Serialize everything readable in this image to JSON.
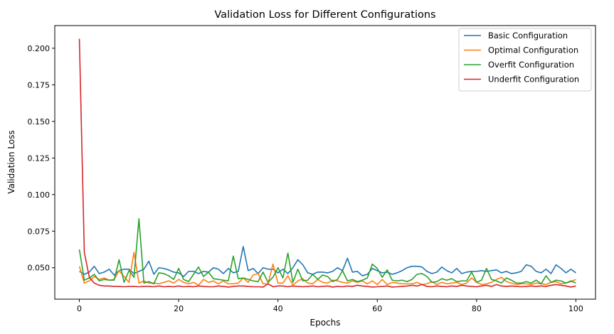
{
  "chart_data": {
    "type": "line",
    "title": "Validation Loss for Different Configurations",
    "xlabel": "Epochs",
    "ylabel": "Validation Loss",
    "xlim": [
      -4.95,
      103.95
    ],
    "ylim": [
      0.0285,
      0.2155
    ],
    "xticks": [
      0,
      20,
      40,
      60,
      80,
      100
    ],
    "xtick_labels": [
      "0",
      "20",
      "40",
      "60",
      "80",
      "100"
    ],
    "yticks": [
      0.05,
      0.075,
      0.1,
      0.125,
      0.15,
      0.175,
      0.2
    ],
    "ytick_labels": [
      "0.050",
      "0.075",
      "0.100",
      "0.125",
      "0.150",
      "0.175",
      "0.200"
    ],
    "grid": false,
    "legend_position": "top-right",
    "series": [
      {
        "name": "Basic Configuration",
        "color": "#1f77b4",
        "values": [
          0.0475,
          0.0455,
          0.047,
          0.051,
          0.046,
          0.047,
          0.049,
          0.045,
          0.048,
          0.049,
          0.049,
          0.046,
          0.0475,
          0.049,
          0.0545,
          0.0455,
          0.05,
          0.0495,
          0.0485,
          0.047,
          0.0465,
          0.044,
          0.0475,
          0.0475,
          0.046,
          0.0475,
          0.047,
          0.05,
          0.049,
          0.046,
          0.0495,
          0.0465,
          0.0475,
          0.0645,
          0.048,
          0.0495,
          0.046,
          0.05,
          0.049,
          0.049,
          0.0465,
          0.049,
          0.046,
          0.05,
          0.0555,
          0.052,
          0.0465,
          0.0455,
          0.047,
          0.047,
          0.0465,
          0.0475,
          0.05,
          0.048,
          0.0565,
          0.047,
          0.0475,
          0.0445,
          0.0455,
          0.0495,
          0.048,
          0.0465,
          0.047,
          0.0455,
          0.0465,
          0.048,
          0.05,
          0.051,
          0.051,
          0.0505,
          0.0475,
          0.046,
          0.047,
          0.0505,
          0.048,
          0.0465,
          0.0495,
          0.046,
          0.047,
          0.0475,
          0.0475,
          0.048,
          0.0475,
          0.048,
          0.0485,
          0.0465,
          0.0475,
          0.046,
          0.0465,
          0.0475,
          0.052,
          0.051,
          0.0475,
          0.0465,
          0.049,
          0.046,
          0.052,
          0.0495,
          0.0465,
          0.049,
          0.0465
        ]
      },
      {
        "name": "Optimal Configuration",
        "color": "#ff7f0e",
        "values": [
          0.051,
          0.0395,
          0.041,
          0.044,
          0.042,
          0.043,
          0.0415,
          0.042,
          0.048,
          0.044,
          0.04,
          0.0605,
          0.0395,
          0.041,
          0.0395,
          0.0395,
          0.039,
          0.04,
          0.041,
          0.0395,
          0.042,
          0.04,
          0.039,
          0.04,
          0.038,
          0.042,
          0.04,
          0.041,
          0.039,
          0.041,
          0.039,
          0.039,
          0.0395,
          0.043,
          0.04,
          0.045,
          0.046,
          0.039,
          0.039,
          0.0525,
          0.0395,
          0.0395,
          0.0445,
          0.038,
          0.041,
          0.0425,
          0.0395,
          0.039,
          0.042,
          0.04,
          0.0395,
          0.0415,
          0.041,
          0.04,
          0.0395,
          0.041,
          0.04,
          0.041,
          0.039,
          0.041,
          0.0385,
          0.042,
          0.0385,
          0.04,
          0.0395,
          0.039,
          0.039,
          0.039,
          0.04,
          0.0385,
          0.039,
          0.0405,
          0.0385,
          0.04,
          0.039,
          0.0395,
          0.04,
          0.0385,
          0.0395,
          0.043,
          0.04,
          0.0385,
          0.039,
          0.04,
          0.042,
          0.0435,
          0.0405,
          0.0395,
          0.0385,
          0.039,
          0.039,
          0.0385,
          0.0395,
          0.039,
          0.0385,
          0.04,
          0.0405,
          0.039,
          0.0395,
          0.0405,
          0.042
        ]
      },
      {
        "name": "Overfit Configuration",
        "color": "#2ca02c",
        "values": [
          0.0625,
          0.0415,
          0.043,
          0.0455,
          0.041,
          0.042,
          0.0415,
          0.0415,
          0.0555,
          0.04,
          0.048,
          0.0435,
          0.0835,
          0.0395,
          0.0405,
          0.039,
          0.0465,
          0.046,
          0.0445,
          0.042,
          0.0495,
          0.042,
          0.0405,
          0.0455,
          0.0505,
          0.044,
          0.047,
          0.0425,
          0.042,
          0.0415,
          0.041,
          0.058,
          0.0425,
          0.043,
          0.042,
          0.041,
          0.0405,
          0.047,
          0.04,
          0.0435,
          0.05,
          0.043,
          0.06,
          0.04,
          0.049,
          0.041,
          0.0415,
          0.0455,
          0.042,
          0.045,
          0.044,
          0.0405,
          0.042,
          0.048,
          0.041,
          0.042,
          0.0405,
          0.0415,
          0.043,
          0.0525,
          0.0495,
          0.0435,
          0.0485,
          0.0415,
          0.041,
          0.0415,
          0.0405,
          0.042,
          0.0455,
          0.046,
          0.044,
          0.04,
          0.0405,
          0.0425,
          0.0415,
          0.0425,
          0.0405,
          0.041,
          0.041,
          0.047,
          0.04,
          0.0415,
          0.0495,
          0.042,
          0.041,
          0.0395,
          0.043,
          0.0415,
          0.0395,
          0.0395,
          0.0405,
          0.0395,
          0.0415,
          0.039,
          0.0445,
          0.04,
          0.0415,
          0.041,
          0.0395,
          0.041,
          0.0395
        ]
      },
      {
        "name": "Underfit Configuration",
        "color": "#d62728",
        "values": [
          0.2065,
          0.0605,
          0.0435,
          0.0395,
          0.038,
          0.0375,
          0.0375,
          0.0372,
          0.0372,
          0.037,
          0.0372,
          0.0372,
          0.037,
          0.0372,
          0.0372,
          0.037,
          0.0375,
          0.037,
          0.0372,
          0.037,
          0.0375,
          0.037,
          0.0372,
          0.037,
          0.0375,
          0.0372,
          0.037,
          0.037,
          0.0375,
          0.0372,
          0.0368,
          0.0372,
          0.0375,
          0.0375,
          0.0372,
          0.037,
          0.037,
          0.0368,
          0.039,
          0.037,
          0.0375,
          0.0375,
          0.037,
          0.0375,
          0.0372,
          0.037,
          0.0372,
          0.0375,
          0.037,
          0.0372,
          0.0375,
          0.0368,
          0.0372,
          0.037,
          0.0375,
          0.0372,
          0.038,
          0.0375,
          0.0372,
          0.0368,
          0.037,
          0.0372,
          0.0375,
          0.0368,
          0.037,
          0.0372,
          0.0375,
          0.038,
          0.0375,
          0.0385,
          0.0372,
          0.037,
          0.0375,
          0.0372,
          0.037,
          0.0375,
          0.0372,
          0.038,
          0.0375,
          0.0372,
          0.037,
          0.0375,
          0.038,
          0.0372,
          0.0385,
          0.0375,
          0.0372,
          0.0375,
          0.0372,
          0.037,
          0.0372,
          0.0375,
          0.0372,
          0.0375,
          0.0372,
          0.038,
          0.0385,
          0.038,
          0.0375,
          0.0368,
          0.0375
        ]
      }
    ]
  }
}
